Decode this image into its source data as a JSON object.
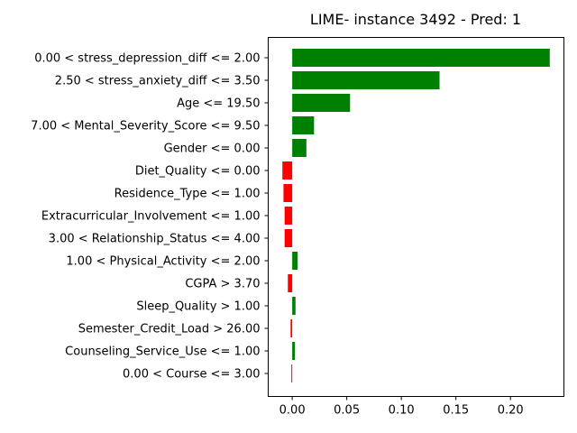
{
  "chart_data": {
    "type": "bar",
    "orientation": "horizontal",
    "title": "LIME- instance 3492 - Pred: 1",
    "xlabel": "",
    "ylabel": "",
    "xlim": [
      -0.022,
      0.249
    ],
    "xticks": [
      0.0,
      0.05,
      0.1,
      0.15,
      0.2
    ],
    "xtick_labels": [
      "0.00",
      "0.05",
      "0.10",
      "0.15",
      "0.20"
    ],
    "grid": false,
    "legend": "none",
    "positive_color": "#008000",
    "negative_color": "#ff0000",
    "categories": [
      "0.00 < stress_depression_diff <= 2.00",
      "2.50 < stress_anxiety_diff <= 3.50",
      "Age <= 19.50",
      "7.00 < Mental_Severity_Score <= 9.50",
      "Gender <= 0.00",
      "Diet_Quality <= 0.00",
      "Residence_Type <= 1.00",
      "Extracurricular_Involvement <= 1.00",
      "3.00 < Relationship_Status <= 4.00",
      "1.00 < Physical_Activity <= 2.00",
      "CGPA > 3.70",
      "Sleep_Quality > 1.00",
      "Semester_Credit_Load > 26.00",
      "Counseling_Service_Use <= 1.00",
      "0.00 < Course <= 3.00"
    ],
    "values": [
      0.236,
      0.135,
      0.053,
      0.02,
      0.013,
      -0.009,
      -0.008,
      -0.007,
      -0.007,
      0.005,
      -0.004,
      0.003,
      -0.0015,
      0.0025,
      -0.0008
    ]
  }
}
